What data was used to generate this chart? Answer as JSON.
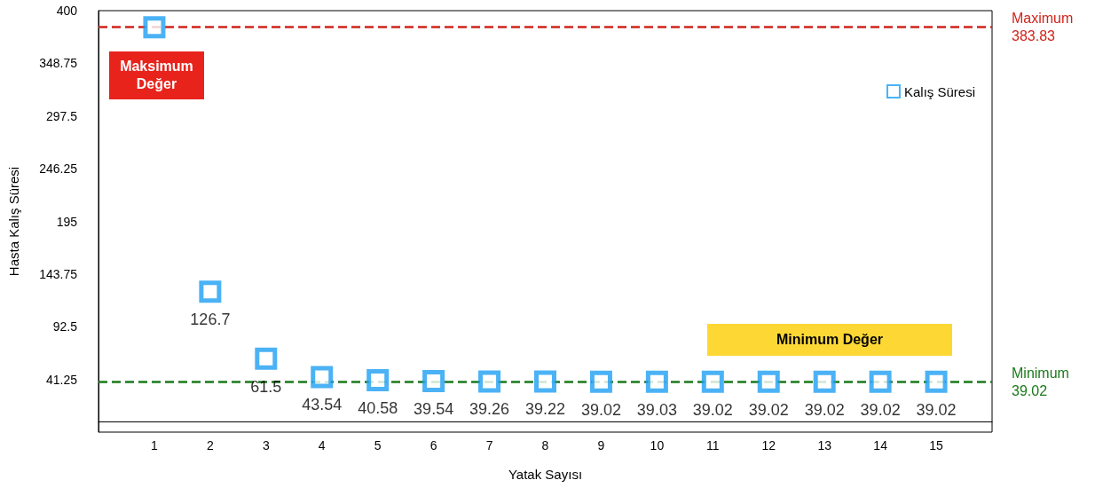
{
  "chart_data": {
    "type": "scatter",
    "xlabel": "Yatak Sayısı",
    "ylabel": "Hasta Kalış Süresi",
    "x": [
      1,
      2,
      3,
      4,
      5,
      6,
      7,
      8,
      9,
      10,
      11,
      12,
      13,
      14,
      15
    ],
    "series": [
      {
        "name": "Kalış Süresi",
        "color": "#1e9ff2",
        "values": [
          383.83,
          126.7,
          61.5,
          43.54,
          40.58,
          39.54,
          39.26,
          39.22,
          39.02,
          39.03,
          39.02,
          39.02,
          39.02,
          39.02,
          39.02
        ],
        "value_labels": [
          null,
          "126.7",
          "61.5",
          "43.54",
          "40.58",
          "39.54",
          "39.26",
          "39.22",
          "39.02",
          "39.03",
          "39.02",
          "39.02",
          "39.02",
          "39.02",
          "39.02"
        ]
      }
    ],
    "xlim": [
      0,
      16
    ],
    "xticks": [
      1,
      2,
      3,
      4,
      5,
      6,
      7,
      8,
      9,
      10,
      11,
      12,
      13,
      14,
      15
    ],
    "ylim": [
      -10,
      400
    ],
    "yticks": [
      41.25,
      92.5,
      143.75,
      195,
      246.25,
      297.5,
      348.75,
      400
    ],
    "ref_lines": [
      {
        "axis": "y",
        "value": 383.83,
        "label": "Maximum\n383.83",
        "color": "#d0241c",
        "line_style": "dashed"
      },
      {
        "axis": "y",
        "value": 39.02,
        "label": "Minimum\n39.02",
        "color": "#1a7a1a",
        "line_style": "dashed"
      }
    ],
    "annotations": [
      "Maksimum Değer",
      "Minimum Değer"
    ],
    "marker": "square",
    "legend": "top right",
    "grid": false
  }
}
